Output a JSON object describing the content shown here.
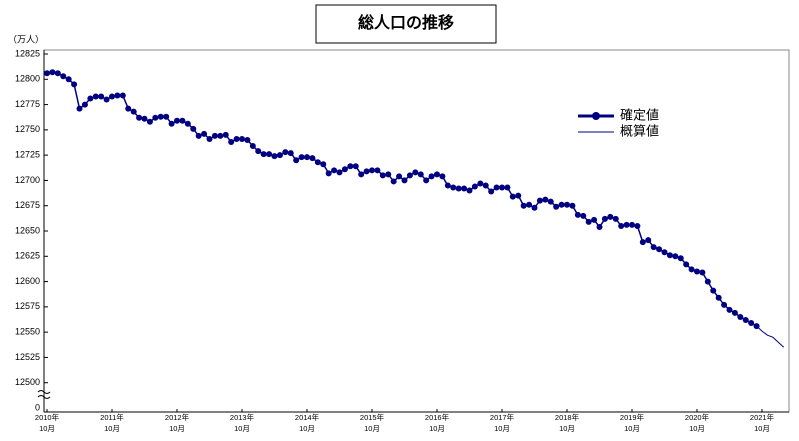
{
  "chart_data": {
    "type": "line",
    "title": "総人口の推移",
    "y_unit": "（万人）",
    "categories": [
      "2010年10月",
      null,
      null,
      null,
      null,
      null,
      null,
      null,
      null,
      null,
      null,
      null,
      "2011年10月",
      null,
      null,
      null,
      null,
      null,
      null,
      null,
      null,
      null,
      null,
      null,
      "2012年10月",
      null,
      null,
      null,
      null,
      null,
      null,
      null,
      null,
      null,
      null,
      null,
      "2013年10月",
      null,
      null,
      null,
      null,
      null,
      null,
      null,
      null,
      null,
      null,
      null,
      "2014年10月",
      null,
      null,
      null,
      null,
      null,
      null,
      null,
      null,
      null,
      null,
      null,
      "2015年10月",
      null,
      null,
      null,
      null,
      null,
      null,
      null,
      null,
      null,
      null,
      null,
      "2016年10月",
      null,
      null,
      null,
      null,
      null,
      null,
      null,
      null,
      null,
      null,
      null,
      "2017年10月",
      null,
      null,
      null,
      null,
      null,
      null,
      null,
      null,
      null,
      null,
      null,
      "2018年10月",
      null,
      null,
      null,
      null,
      null,
      null,
      null,
      null,
      null,
      null,
      null,
      "2019年10月",
      null,
      null,
      null,
      null,
      null,
      null,
      null,
      null,
      null,
      null,
      null,
      "2020年10月",
      null,
      null,
      null,
      null,
      null,
      null,
      null,
      null,
      null,
      null,
      null,
      "2021年10月",
      null,
      null,
      null,
      null
    ],
    "series": [
      {
        "name": "確定値",
        "color": "#000080",
        "marker": true,
        "values": [
          12806,
          12807,
          12806,
          12803,
          12800,
          12795,
          12771,
          12775,
          12781,
          12783,
          12783,
          12780,
          12783,
          12784,
          12784,
          12771,
          12768,
          12762,
          12761,
          12758,
          12762,
          12763,
          12763,
          12756,
          12759,
          12759,
          12756,
          12751,
          12744,
          12746,
          12741,
          12744,
          12744,
          12745,
          12738,
          12741,
          12741,
          12740,
          12734,
          12729,
          12726,
          12726,
          12724,
          12725,
          12728,
          12727,
          12720,
          12723,
          12723,
          12722,
          12718,
          12716,
          12707,
          12710,
          12708,
          12711,
          12714,
          12714,
          12706,
          12709,
          12710,
          12710,
          12705,
          12706,
          12699,
          12704,
          12700,
          12705,
          12708,
          12706,
          12700,
          12704,
          12706,
          12704,
          12695,
          12693,
          12692,
          12692,
          12690,
          12694,
          12697,
          12695,
          12689,
          12693,
          12693,
          12693,
          12684,
          12685,
          12675,
          12676,
          12673,
          12680,
          12681,
          12679,
          12674,
          12676,
          12676,
          12675,
          12666,
          12665,
          12659,
          12661,
          12654,
          12662,
          12664,
          12662,
          12655,
          12656,
          12656,
          12655,
          12639,
          12641,
          12634,
          12632,
          12629,
          12626,
          12625,
          12623,
          12617,
          12612,
          12610,
          12609,
          12600,
          12591,
          12584,
          12577,
          12572,
          12569,
          12565,
          12562,
          12559,
          12556,
          null,
          null,
          null,
          null,
          null
        ]
      },
      {
        "name": "概算値",
        "color": "#000080",
        "marker": false,
        "values": [
          null,
          null,
          null,
          null,
          null,
          null,
          null,
          null,
          null,
          null,
          null,
          null,
          null,
          null,
          null,
          null,
          null,
          null,
          null,
          null,
          null,
          null,
          null,
          null,
          null,
          null,
          null,
          null,
          null,
          null,
          null,
          null,
          null,
          null,
          null,
          null,
          null,
          null,
          null,
          null,
          null,
          null,
          null,
          null,
          null,
          null,
          null,
          null,
          null,
          null,
          null,
          null,
          null,
          null,
          null,
          null,
          null,
          null,
          null,
          null,
          null,
          null,
          null,
          null,
          null,
          null,
          null,
          null,
          null,
          null,
          null,
          null,
          null,
          null,
          null,
          null,
          null,
          null,
          null,
          null,
          null,
          null,
          null,
          null,
          null,
          null,
          null,
          null,
          null,
          null,
          null,
          null,
          null,
          null,
          null,
          null,
          null,
          null,
          null,
          null,
          null,
          null,
          null,
          null,
          null,
          null,
          null,
          null,
          null,
          null,
          null,
          null,
          null,
          null,
          null,
          null,
          null,
          null,
          null,
          null,
          null,
          null,
          null,
          null,
          null,
          null,
          null,
          null,
          null,
          null,
          null,
          12556,
          12551,
          12547,
          12545,
          12540,
          12535
        ]
      }
    ],
    "ylim": [
      12475,
      12825
    ],
    "yticks": [
      12500,
      12525,
      12550,
      12575,
      12600,
      12625,
      12650,
      12675,
      12700,
      12725,
      12750,
      12775,
      12800,
      12825
    ],
    "y_break_label": "0",
    "legend": "upper-right"
  }
}
